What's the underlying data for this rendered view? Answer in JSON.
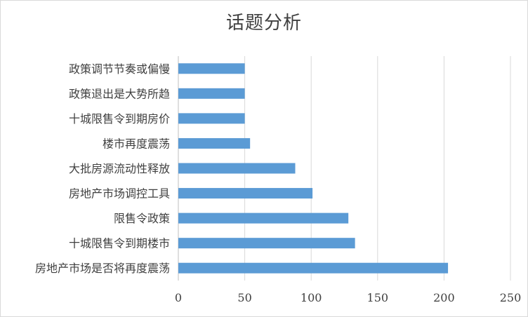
{
  "chart_data": {
    "type": "bar",
    "orientation": "horizontal",
    "title": "话题分析",
    "categories": [
      "政策调节节奏或偏慢",
      "政策退出是大势所趋",
      "十城限售令到期房价",
      "楼市再度震荡",
      "大批房源流动性释放",
      "房地产市场调控工具",
      "限售令政策",
      "十城限售令到期楼市",
      "房地产市场是否将再度震荡"
    ],
    "values": [
      50,
      50,
      50,
      54,
      88,
      101,
      128,
      133,
      203
    ],
    "xlim": [
      0,
      250
    ],
    "xticks": [
      0,
      50,
      100,
      150,
      200,
      250
    ],
    "grid": "vertical",
    "bar_color": "#5b9bd5"
  }
}
